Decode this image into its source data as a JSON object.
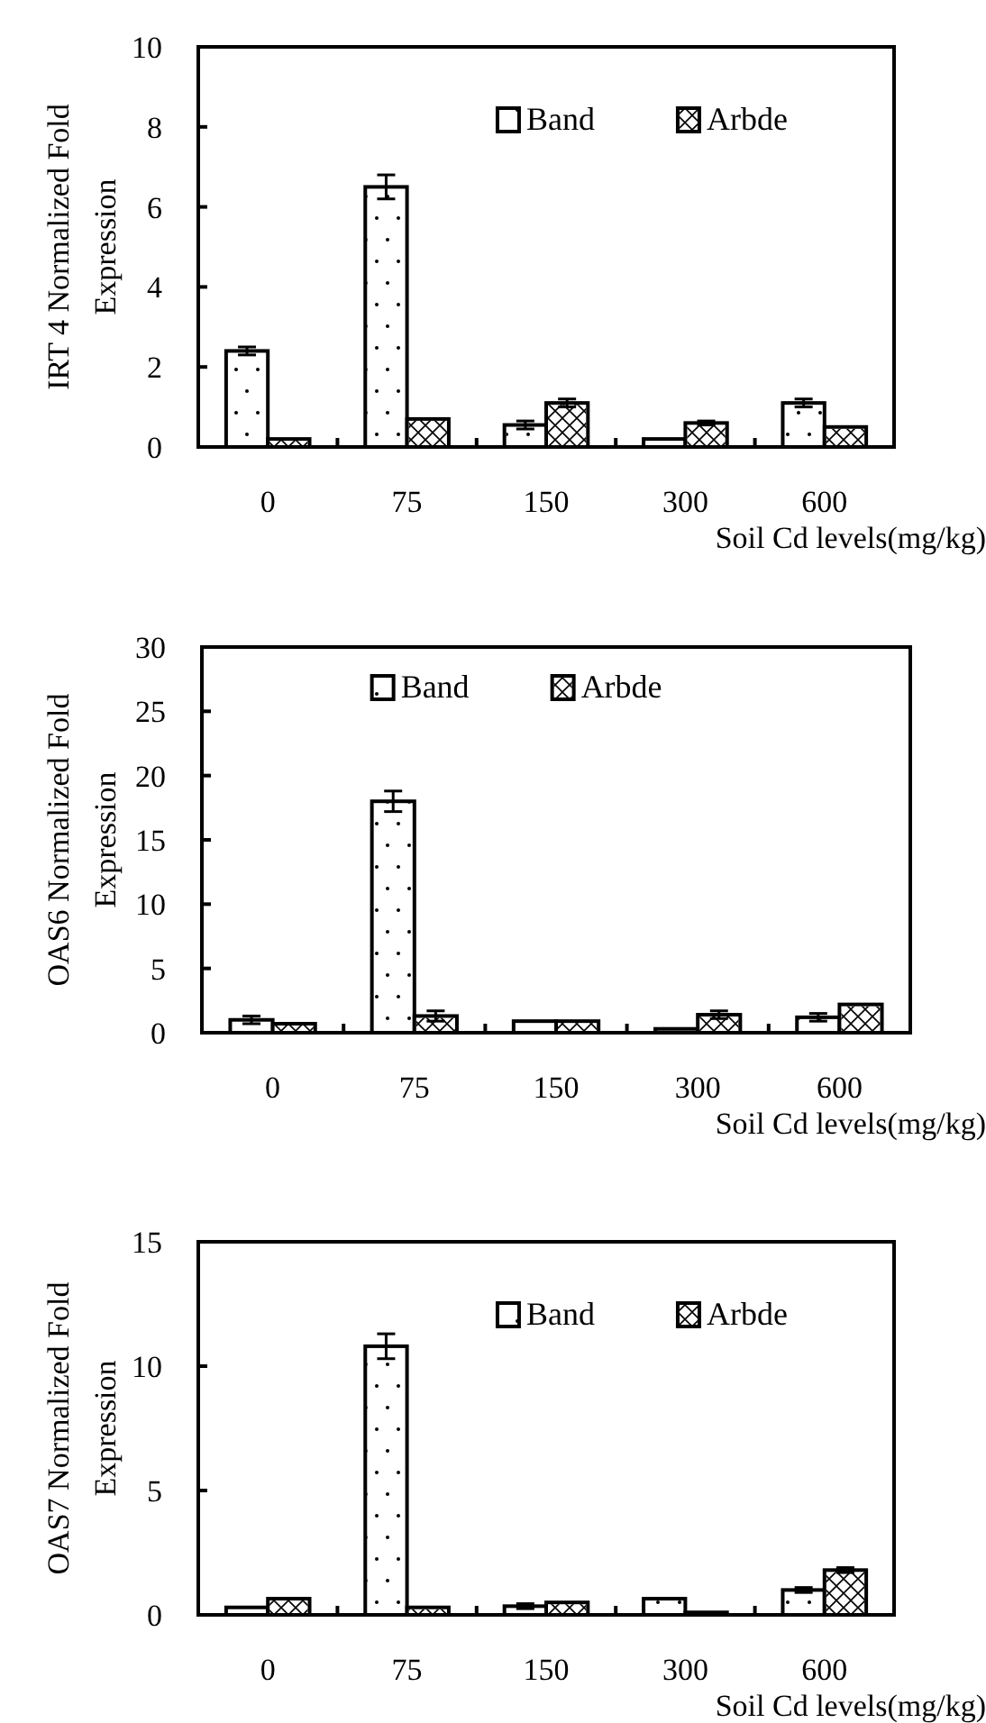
{
  "chart_data": [
    {
      "type": "bar",
      "ylabel": "IRT 4 Normalized Fold Expression",
      "xlabel": "Soil Cd levels(mg/kg)",
      "categories": [
        "0",
        "75",
        "150",
        "300",
        "600"
      ],
      "ylim": [
        0,
        10
      ],
      "yticks": [
        0,
        2,
        4,
        6,
        8,
        10
      ],
      "legend": "top right",
      "series": [
        {
          "name": "Band",
          "color": "#ffffff",
          "values": [
            2.4,
            6.5,
            0.55,
            0.2,
            1.1
          ],
          "errors": [
            0.1,
            0.3,
            0.1,
            null,
            0.1
          ]
        },
        {
          "name": "Arbde",
          "color": "#ffffff",
          "values": [
            0.2,
            0.7,
            1.1,
            0.6,
            0.5
          ],
          "errors": [
            null,
            null,
            0.1,
            0.05,
            null
          ]
        }
      ]
    },
    {
      "type": "bar",
      "ylabel": "OAS6 Normalized Fold Expression",
      "xlabel": "Soil Cd levels(mg/kg)",
      "categories": [
        "0",
        "75",
        "150",
        "300",
        "600"
      ],
      "ylim": [
        0,
        30
      ],
      "yticks": [
        0,
        5,
        10,
        15,
        20,
        25,
        30
      ],
      "legend": "top",
      "series": [
        {
          "name": "Band",
          "color": "#ffffff",
          "values": [
            1.0,
            18.0,
            0.9,
            0.3,
            1.2
          ],
          "errors": [
            0.3,
            0.8,
            null,
            null,
            0.3
          ]
        },
        {
          "name": "Arbde",
          "color": "#ffffff",
          "values": [
            0.7,
            1.3,
            0.9,
            1.4,
            2.2
          ],
          "errors": [
            null,
            0.4,
            null,
            0.3,
            null
          ]
        }
      ]
    },
    {
      "type": "bar",
      "ylabel": "OAS7 Normalized Fold Expression",
      "xlabel": "Soil Cd levels(mg/kg)",
      "categories": [
        "0",
        "75",
        "150",
        "300",
        "600"
      ],
      "ylim": [
        0,
        15
      ],
      "yticks": [
        0,
        5,
        10,
        15
      ],
      "legend": "top right",
      "series": [
        {
          "name": "Band",
          "color": "#ffffff",
          "values": [
            0.3,
            10.8,
            0.35,
            0.65,
            1.0
          ],
          "errors": [
            null,
            0.5,
            0.1,
            null,
            0.1
          ]
        },
        {
          "name": "Arbde",
          "color": "#ffffff",
          "values": [
            0.65,
            0.3,
            0.5,
            0.1,
            1.8
          ],
          "errors": [
            null,
            null,
            null,
            null,
            0.1
          ]
        }
      ]
    }
  ]
}
